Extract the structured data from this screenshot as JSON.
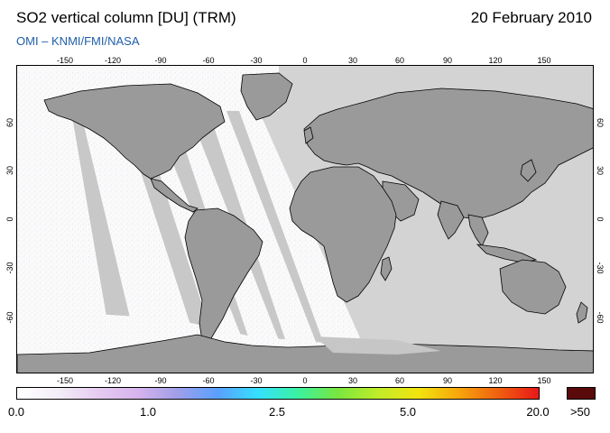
{
  "header": {
    "title": "SO2 vertical column [DU] (TRM)",
    "date": "20 February 2010",
    "credit": "OMI  –  KNMI/FMI/NASA"
  },
  "map": {
    "projection": "equirectangular",
    "longitude_ticks": [
      "-150",
      "-120",
      "-90",
      "-60",
      "-30",
      "0",
      "30",
      "60",
      "90",
      "120",
      "150"
    ],
    "latitude_ticks": [
      "60",
      "30",
      "0",
      "-30",
      "-60"
    ],
    "colors": {
      "land": "#9a9a9a",
      "ocean": "#d3d3d3",
      "swath_shadow": "#c6c6c6",
      "coastline": "#000000"
    }
  },
  "colorbar": {
    "labels": [
      "0.0",
      "1.0",
      "2.5",
      "5.0",
      "20.0"
    ],
    "overflow_label": ">50",
    "overflow_color": "#5a0a0a",
    "gradient": [
      "#ffffff",
      "#f3eef8",
      "#e6ccf0",
      "#d7b3ee",
      "#9f9fe8",
      "#5aa0ff",
      "#35e0ff",
      "#3af2a0",
      "#7ae63e",
      "#c0ec2a",
      "#f2e40e",
      "#f6a60c",
      "#f06010",
      "#e81818"
    ]
  }
}
